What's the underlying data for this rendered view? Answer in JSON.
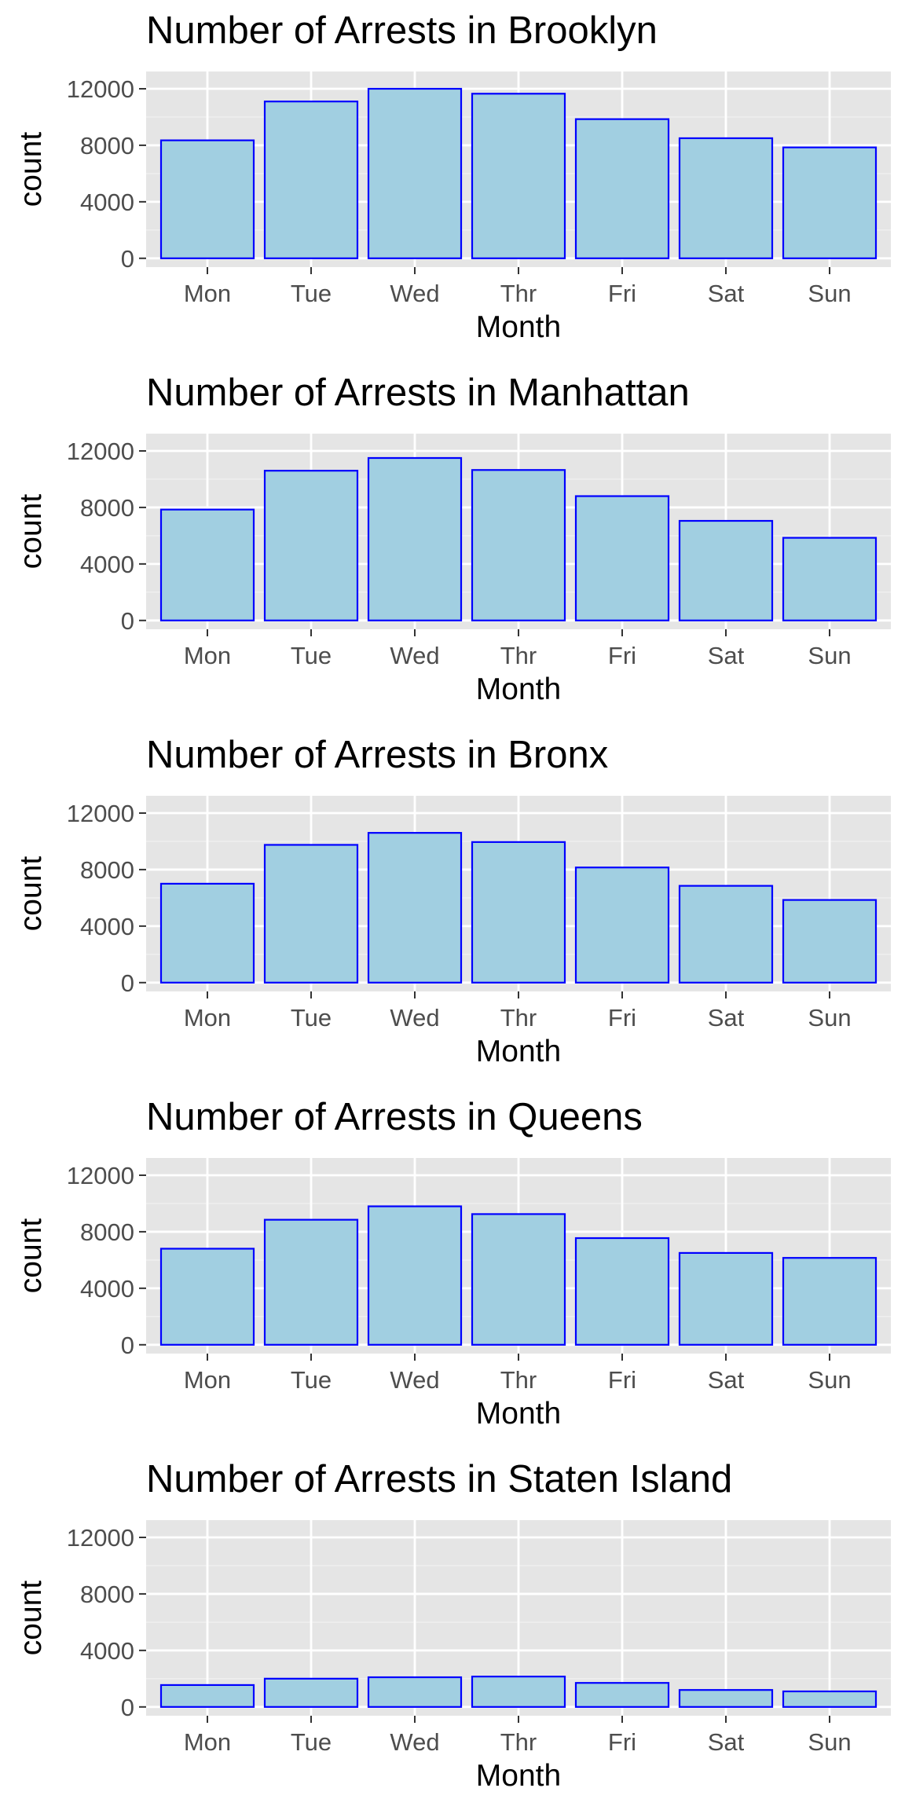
{
  "colors": {
    "panel_background": "#e5e5e5",
    "grid_major": "#ffffff",
    "grid_minor": "#f0f0f0",
    "bar_fill": "#a1cfe1",
    "bar_outline": "#0000ff",
    "tick_text": "#4d4d4d"
  },
  "chart_data": [
    {
      "type": "bar",
      "title": "Number of Arrests in Brooklyn",
      "xlabel": "Month",
      "ylabel": "count",
      "categories": [
        "Mon",
        "Tue",
        "Wed",
        "Thr",
        "Fri",
        "Sat",
        "Sun"
      ],
      "values": [
        8350,
        11100,
        12000,
        11650,
        9850,
        8500,
        7850
      ],
      "yticks": [
        0,
        4000,
        8000,
        12000
      ],
      "ylim": [
        0,
        12600
      ],
      "grid": true,
      "legend": "none"
    },
    {
      "type": "bar",
      "title": "Number of Arrests in Manhattan",
      "xlabel": "Month",
      "ylabel": "count",
      "categories": [
        "Mon",
        "Tue",
        "Wed",
        "Thr",
        "Fri",
        "Sat",
        "Sun"
      ],
      "values": [
        7850,
        10600,
        11500,
        10650,
        8800,
        7050,
        5850
      ],
      "yticks": [
        0,
        4000,
        8000,
        12000
      ],
      "ylim": [
        0,
        12600
      ],
      "grid": true,
      "legend": "none"
    },
    {
      "type": "bar",
      "title": "Number of Arrests in Bronx",
      "xlabel": "Month",
      "ylabel": "count",
      "categories": [
        "Mon",
        "Tue",
        "Wed",
        "Thr",
        "Fri",
        "Sat",
        "Sun"
      ],
      "values": [
        7000,
        9750,
        10600,
        9950,
        8150,
        6850,
        5850
      ],
      "yticks": [
        0,
        4000,
        8000,
        12000
      ],
      "ylim": [
        0,
        12600
      ],
      "grid": true,
      "legend": "none"
    },
    {
      "type": "bar",
      "title": "Number of Arrests in Queens",
      "xlabel": "Month",
      "ylabel": "count",
      "categories": [
        "Mon",
        "Tue",
        "Wed",
        "Thr",
        "Fri",
        "Sat",
        "Sun"
      ],
      "values": [
        6800,
        8850,
        9800,
        9250,
        7550,
        6500,
        6150
      ],
      "yticks": [
        0,
        4000,
        8000,
        12000
      ],
      "ylim": [
        0,
        12600
      ],
      "grid": true,
      "legend": "none"
    },
    {
      "type": "bar",
      "title": "Number of Arrests in Staten Island",
      "xlabel": "Month",
      "ylabel": "count",
      "categories": [
        "Mon",
        "Tue",
        "Wed",
        "Thr",
        "Fri",
        "Sat",
        "Sun"
      ],
      "values": [
        1550,
        2000,
        2100,
        2150,
        1700,
        1200,
        1100
      ],
      "yticks": [
        0,
        4000,
        8000,
        12000
      ],
      "ylim": [
        0,
        12600
      ],
      "grid": true,
      "legend": "none"
    }
  ]
}
